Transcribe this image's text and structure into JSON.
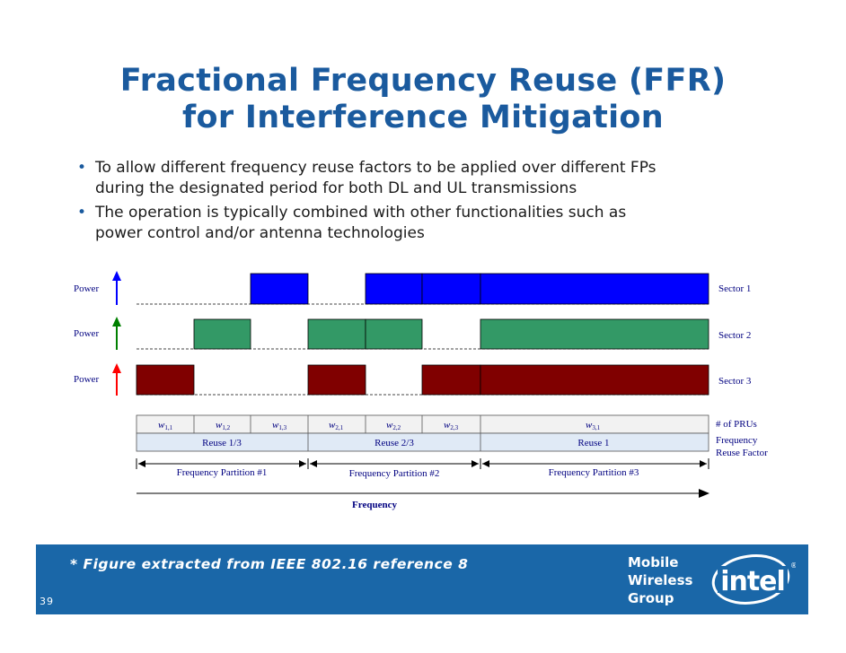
{
  "title_line1": "Fractional Frequency Reuse (FFR)",
  "title_line2": "for Interference Mitigation",
  "bullets": [
    {
      "line1": "To allow different frequency reuse factors to be applied over different FPs",
      "line2": "during the designated period for both DL and UL transmissions"
    },
    {
      "line1": "The operation is typically combined with other functionalities such as",
      "line2": "power control and/or antenna technologies"
    }
  ],
  "figure": {
    "colors": {
      "sector1": "#0000ff",
      "sector2": "#339966",
      "sector3": "#800000",
      "arrow1": "#0000ff",
      "arrow2": "#008000",
      "arrow3": "#ff0000",
      "label": "#000080"
    },
    "rows": [
      {
        "label": "Power",
        "sector": "Sector 1"
      },
      {
        "label": "Power",
        "sector": "Sector 2"
      },
      {
        "label": "Power",
        "sector": "Sector 3"
      }
    ],
    "w_cells": [
      {
        "base": "w",
        "sub": "1,1"
      },
      {
        "base": "w",
        "sub": "1,2"
      },
      {
        "base": "w",
        "sub": "1,3"
      },
      {
        "base": "w",
        "sub": "2,1"
      },
      {
        "base": "w",
        "sub": "2,2"
      },
      {
        "base": "w",
        "sub": "2,3"
      },
      {
        "base": "w",
        "sub": "3,1"
      }
    ],
    "reuse": [
      "Reuse 1/3",
      "Reuse 2/3",
      "Reuse 1"
    ],
    "prus_label": "# of PRUs",
    "reuse_label_1": "Frequency",
    "reuse_label_2": "Reuse Factor",
    "partitions": [
      "Frequency Partition #1",
      "Frequency Partition #2",
      "Frequency Partition #3"
    ],
    "axis_label": "Frequency"
  },
  "footnote": "* Figure extracted from IEEE 802.16 reference 8",
  "page_number": "39",
  "group_lines": [
    "Mobile",
    "Wireless",
    "Group"
  ],
  "logo_text": "intel",
  "footer_color": "#1a67a8"
}
